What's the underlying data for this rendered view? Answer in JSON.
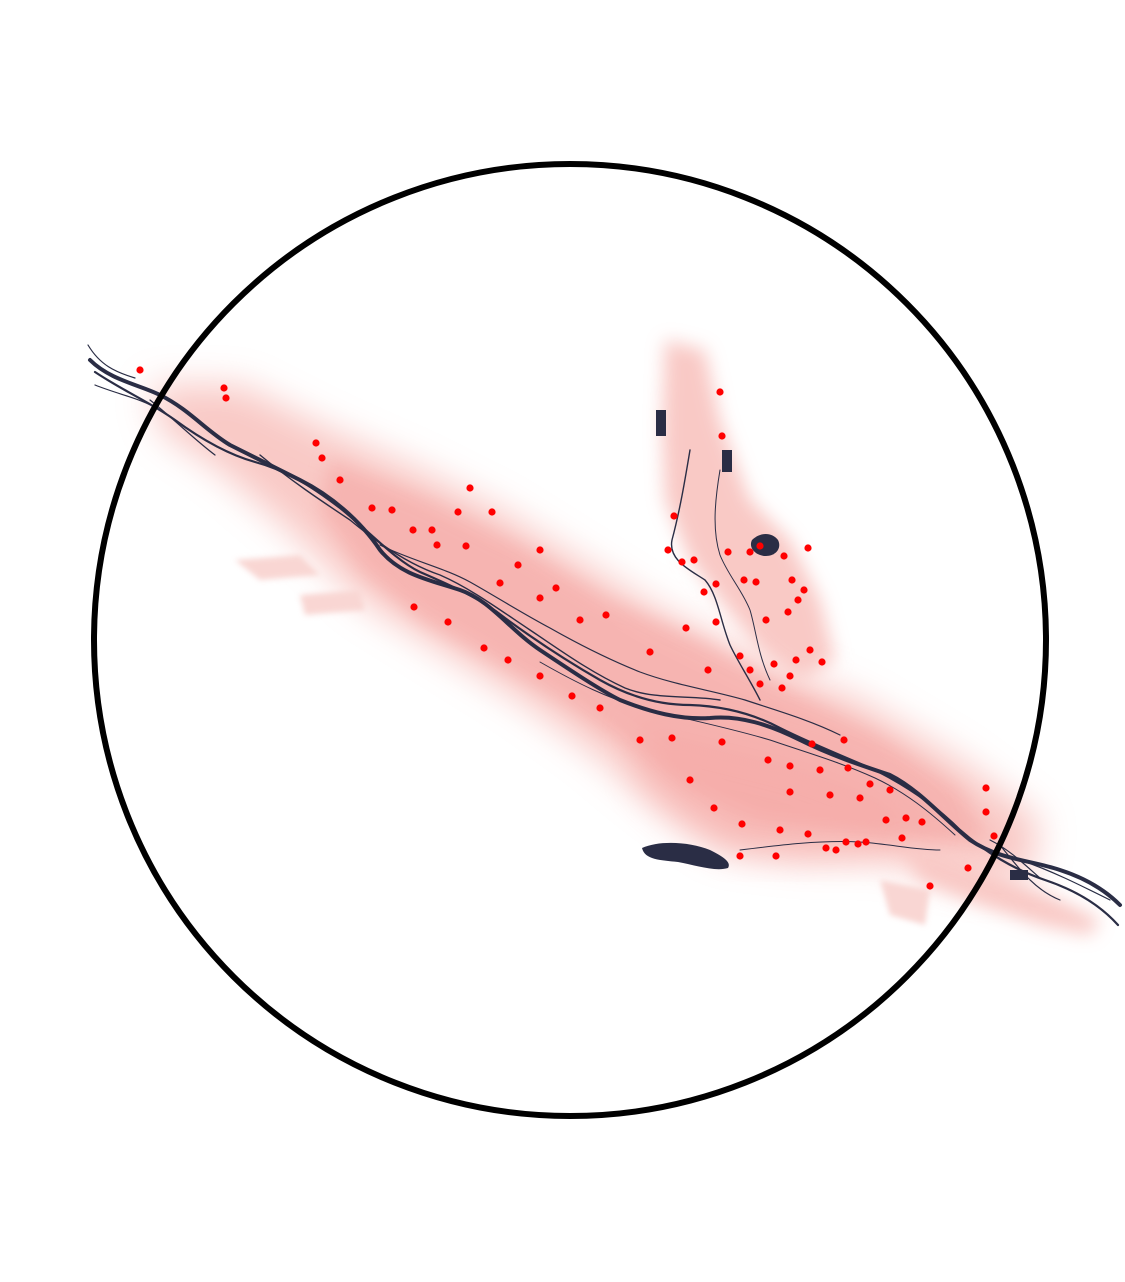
{
  "map": {
    "colors": {
      "background": "#ffffff",
      "river": "#2a2d45",
      "wetland": "#f28a86",
      "wetland_light": "#f7b7b2",
      "point": "#ff0000",
      "ring": "#000000"
    },
    "layers": [
      "river-network",
      "floodplain-density",
      "observation-points",
      "focus-circle"
    ]
  }
}
